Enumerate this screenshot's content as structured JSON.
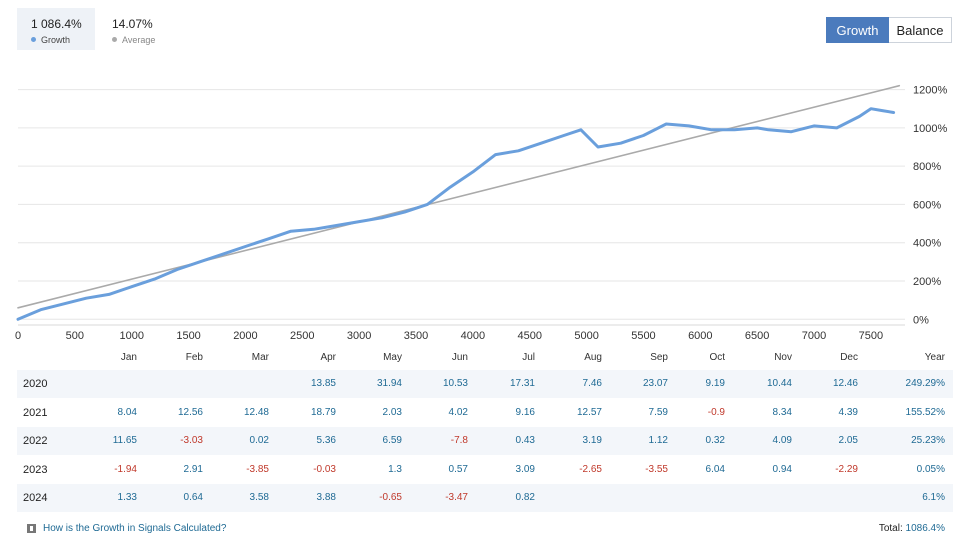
{
  "summary": {
    "growth_value": "1 086.4%",
    "growth_label": "Growth",
    "average_value": "14.07%",
    "average_label": "Average"
  },
  "toggle": {
    "growth_label": "Growth",
    "balance_label": "Balance"
  },
  "colors": {
    "growth_line": "#6a9fdc",
    "trend_line": "#aaaaaa",
    "accent": "#4b7bbd",
    "positive": "#1f6a94",
    "negative": "#c0392b",
    "row_alt": "#f3f6fa"
  },
  "chart_data": {
    "type": "line",
    "x_ticks": [
      0,
      500,
      1000,
      1500,
      2000,
      2500,
      3000,
      3500,
      4000,
      4500,
      5000,
      5500,
      6000,
      6500,
      7000,
      7500
    ],
    "x_tick_labels": [
      "0",
      "500",
      "1000",
      "1500",
      "2000",
      "2500",
      "3000",
      "3500",
      "4000",
      "4500",
      "5000",
      "5500",
      "6000",
      "6500",
      "7000",
      "7500"
    ],
    "y_ticks": [
      0,
      200,
      400,
      600,
      800,
      1000,
      1200
    ],
    "y_tick_labels": [
      "0%",
      "200%",
      "400%",
      "600%",
      "800%",
      "1000%",
      "1200%"
    ],
    "xlim": [
      0,
      7800
    ],
    "ylim": [
      -30,
      1250
    ],
    "grid": true,
    "series": [
      {
        "name": "Growth",
        "x": [
          0,
          200,
          400,
          600,
          800,
          1000,
          1200,
          1400,
          1600,
          1800,
          2000,
          2200,
          2400,
          2600,
          2800,
          3000,
          3200,
          3400,
          3600,
          3800,
          4000,
          4200,
          4400,
          4600,
          4800,
          4950,
          5100,
          5300,
          5500,
          5700,
          5900,
          6100,
          6300,
          6500,
          6600,
          6800,
          7000,
          7200,
          7400,
          7500,
          7600,
          7700
        ],
        "y": [
          0,
          50,
          80,
          110,
          130,
          170,
          210,
          260,
          300,
          340,
          380,
          420,
          460,
          470,
          490,
          510,
          530,
          560,
          600,
          690,
          770,
          860,
          880,
          920,
          960,
          990,
          900,
          920,
          960,
          1020,
          1010,
          990,
          990,
          1000,
          990,
          980,
          1010,
          1000,
          1060,
          1100,
          1090,
          1080
        ]
      },
      {
        "name": "Average",
        "x": [
          0,
          7750
        ],
        "y": [
          60,
          1220
        ]
      }
    ]
  },
  "table": {
    "months": [
      "Jan",
      "Feb",
      "Mar",
      "Apr",
      "May",
      "Jun",
      "Jul",
      "Aug",
      "Sep",
      "Oct",
      "Nov",
      "Dec"
    ],
    "year_header": "Year",
    "rows": [
      {
        "year": "2020",
        "values": [
          "",
          "",
          "",
          "13.85",
          "31.94",
          "10.53",
          "17.31",
          "7.46",
          "23.07",
          "9.19",
          "10.44",
          "12.46"
        ],
        "total": "249.29%"
      },
      {
        "year": "2021",
        "values": [
          "8.04",
          "12.56",
          "12.48",
          "18.79",
          "2.03",
          "4.02",
          "9.16",
          "12.57",
          "7.59",
          "-0.9",
          "8.34",
          "4.39"
        ],
        "total": "155.52%"
      },
      {
        "year": "2022",
        "values": [
          "11.65",
          "-3.03",
          "0.02",
          "5.36",
          "6.59",
          "-7.8",
          "0.43",
          "3.19",
          "1.12",
          "0.32",
          "4.09",
          "2.05"
        ],
        "total": "25.23%"
      },
      {
        "year": "2023",
        "values": [
          "-1.94",
          "2.91",
          "-3.85",
          "-0.03",
          "1.3",
          "0.57",
          "3.09",
          "-2.65",
          "-3.55",
          "6.04",
          "0.94",
          "-2.29"
        ],
        "total": "0.05%"
      },
      {
        "year": "2024",
        "values": [
          "1.33",
          "0.64",
          "3.58",
          "3.88",
          "-0.65",
          "-3.47",
          "0.82",
          "",
          "",
          "",
          "",
          ""
        ],
        "total": "6.1%"
      }
    ]
  },
  "footer": {
    "help_link": "How is the Growth in Signals Calculated?",
    "total_label": "Total:",
    "total_value": "1086.4%"
  }
}
